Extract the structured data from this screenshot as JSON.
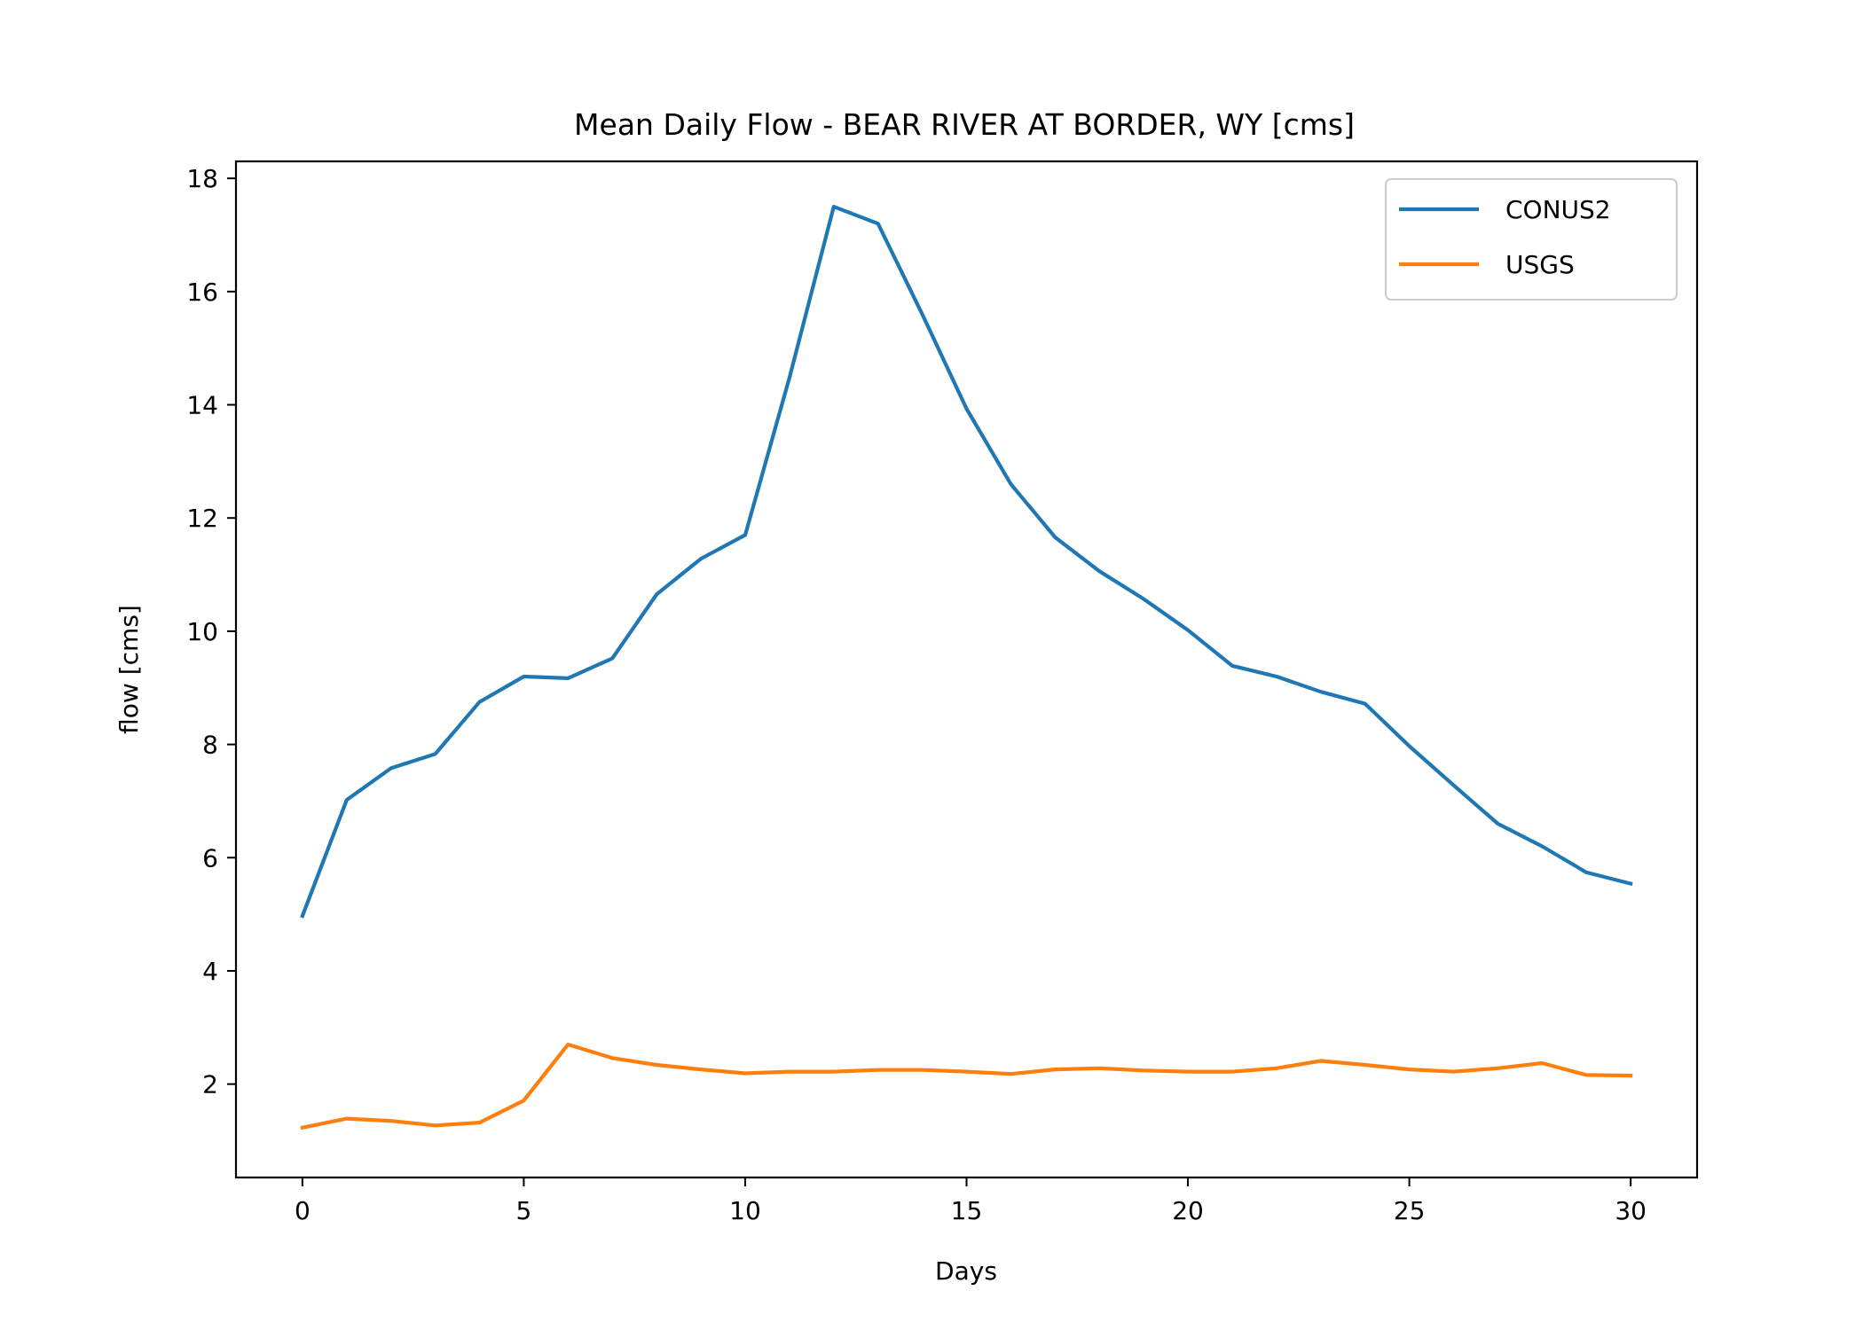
{
  "chart_data": {
    "type": "line",
    "title": "Mean Daily Flow - BEAR RIVER AT BORDER, WY [cms]",
    "xlabel": "Days",
    "ylabel": "flow [cms]",
    "xlim": [
      -1.5,
      31.5
    ],
    "ylim": [
      0.35,
      18.3
    ],
    "xticks": [
      0,
      5,
      10,
      15,
      20,
      25,
      30
    ],
    "yticks": [
      2,
      4,
      6,
      8,
      10,
      12,
      14,
      16,
      18
    ],
    "grid": false,
    "legend_position": "top-right",
    "x": [
      0,
      1,
      2,
      3,
      4,
      5,
      6,
      7,
      8,
      9,
      10,
      11,
      12,
      13,
      14,
      15,
      16,
      17,
      18,
      19,
      20,
      21,
      22,
      23,
      24,
      25,
      26,
      27,
      28,
      29,
      30
    ],
    "series": [
      {
        "name": "CONUS2",
        "color": "#1f77b4",
        "values": [
          4.97,
          7.02,
          7.58,
          7.83,
          8.75,
          9.2,
          9.17,
          9.52,
          10.65,
          11.28,
          11.7,
          14.48,
          17.5,
          17.2,
          15.6,
          13.93,
          12.6,
          11.66,
          11.06,
          10.57,
          10.02,
          9.39,
          9.2,
          8.93,
          8.72,
          7.97,
          7.28,
          6.6,
          6.2,
          5.74,
          5.54
        ]
      },
      {
        "name": "USGS",
        "color": "#ff7f0e",
        "values": [
          1.23,
          1.39,
          1.35,
          1.27,
          1.32,
          1.71,
          2.7,
          2.46,
          2.34,
          2.26,
          2.19,
          2.22,
          2.22,
          2.25,
          2.25,
          2.22,
          2.18,
          2.26,
          2.28,
          2.24,
          2.22,
          2.22,
          2.28,
          2.41,
          2.34,
          2.26,
          2.22,
          2.28,
          2.37,
          2.16,
          2.15
        ]
      }
    ]
  }
}
